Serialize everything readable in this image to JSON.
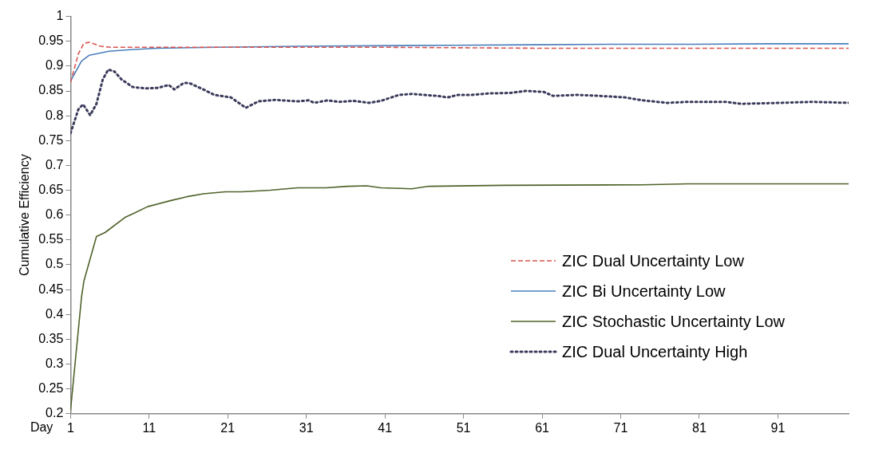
{
  "chart_data": {
    "type": "line",
    "xlabel": "Day",
    "ylabel": "Cumulative Efficiency",
    "xlim": [
      1,
      100
    ],
    "xticks": [
      1,
      11,
      21,
      31,
      41,
      51,
      61,
      71,
      81,
      91
    ],
    "ylim": [
      0.2,
      1
    ],
    "yticks": [
      0.2,
      0.25,
      0.3,
      0.35,
      0.4,
      0.45,
      0.5,
      0.55,
      0.6,
      0.65,
      0.7,
      0.75,
      0.8,
      0.85,
      0.9,
      0.95,
      1
    ],
    "grid": false,
    "legend": "bottom right",
    "marker": "none",
    "series": [
      {
        "name": "ZIC Dual Uncertainty Low",
        "color": "#d9534f",
        "line_style": "dashed",
        "x": [
          1,
          2,
          2.7,
          3.4,
          4.8,
          6,
          10,
          20,
          30,
          40,
          50,
          60,
          70,
          80,
          90,
          100
        ],
        "values": [
          0.867,
          0.925,
          0.946,
          0.948,
          0.94,
          0.938,
          0.938,
          0.938,
          0.938,
          0.938,
          0.937,
          0.936,
          0.936,
          0.936,
          0.936,
          0.936
        ]
      },
      {
        "name": "ZIC Bi Uncertainty Low",
        "color": "#4a7ebb",
        "line_style": "solid",
        "x": [
          1,
          2.4,
          3.4,
          5.9,
          8.7,
          12,
          20,
          30,
          40,
          50,
          60,
          70,
          80,
          90,
          100
        ],
        "values": [
          0.87,
          0.91,
          0.922,
          0.93,
          0.933,
          0.936,
          0.938,
          0.94,
          0.941,
          0.942,
          0.943,
          0.944,
          0.944,
          0.945,
          0.945
        ]
      },
      {
        "name": "ZIC Stochastic Uncertainty Low",
        "color": "#4f6228",
        "line_style": "solid",
        "x": [
          1,
          2.4,
          2.7,
          4.3,
          5.4,
          8,
          9,
          10.8,
          13.7,
          15.8,
          17.9,
          20.7,
          22.8,
          26.4,
          29.9,
          33.5,
          36.2,
          38.7,
          40.5,
          44.4,
          46.6,
          56.1,
          73.8,
          79.6,
          100
        ],
        "values": [
          0.207,
          0.435,
          0.467,
          0.557,
          0.565,
          0.596,
          0.603,
          0.617,
          0.629,
          0.637,
          0.643,
          0.647,
          0.647,
          0.65,
          0.655,
          0.655,
          0.658,
          0.659,
          0.655,
          0.653,
          0.658,
          0.66,
          0.661,
          0.663,
          0.663
        ]
      },
      {
        "name": "ZIC Dual Uncertainty High",
        "color": "#3b3b5c",
        "line_style": "dotted",
        "x": [
          1,
          2,
          2.6,
          3.5,
          4.3,
          5.1,
          5.8,
          6.6,
          7.5,
          8.9,
          10.5,
          12.1,
          13.5,
          14.2,
          15.4,
          16.1,
          17.9,
          19.3,
          21.4,
          23.3,
          24.9,
          27,
          29.9,
          31.3,
          32,
          33.7,
          35.2,
          37,
          39,
          40.5,
          42.8,
          44.4,
          47.6,
          49,
          50.3,
          52,
          54.2,
          57,
          58.9,
          61.2,
          62.4,
          65.5,
          68.3,
          71.5,
          73.8,
          76.9,
          79.6,
          84.4,
          86.3,
          91.4,
          95.3,
          100
        ],
        "values": [
          0.765,
          0.813,
          0.823,
          0.801,
          0.824,
          0.873,
          0.893,
          0.889,
          0.873,
          0.858,
          0.855,
          0.856,
          0.862,
          0.853,
          0.866,
          0.866,
          0.853,
          0.842,
          0.837,
          0.816,
          0.829,
          0.832,
          0.829,
          0.831,
          0.826,
          0.831,
          0.828,
          0.83,
          0.826,
          0.83,
          0.842,
          0.844,
          0.84,
          0.837,
          0.842,
          0.842,
          0.845,
          0.846,
          0.85,
          0.848,
          0.84,
          0.842,
          0.84,
          0.837,
          0.831,
          0.826,
          0.828,
          0.828,
          0.824,
          0.826,
          0.828,
          0.826
        ]
      }
    ]
  }
}
